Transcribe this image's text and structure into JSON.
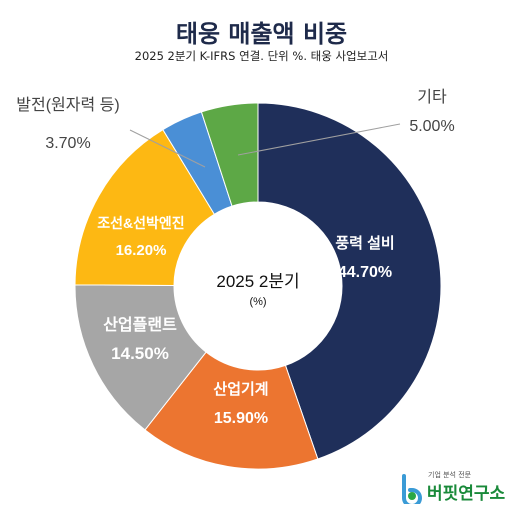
{
  "title": "태웅 매출액 비중",
  "subtitle": "2025 2분기 K-IFRS 연결. 단위 %. 태웅 사업보고서",
  "colors": {
    "navy": "#1f2f5a",
    "orange": "#ec7530",
    "gray": "#a6a6a6",
    "yellow": "#fdb813",
    "blue": "#4a8fd6",
    "green": "#5da846",
    "dark_text": "#444444"
  },
  "chart_data": {
    "type": "pie",
    "variant": "donut",
    "center_label": "2025 2분기",
    "center_sublabel": "(%)",
    "slices": [
      {
        "name": "풍력 설비",
        "value": 44.7,
        "label": "44.70%",
        "color": "#1f2f5a"
      },
      {
        "name": "산업기계",
        "value": 15.9,
        "label": "15.90%",
        "color": "#ec7530"
      },
      {
        "name": "산업플랜트",
        "value": 14.5,
        "label": "14.50%",
        "color": "#a6a6a6"
      },
      {
        "name": "조선&선박엔진",
        "value": 16.2,
        "label": "16.20%",
        "color": "#fdb813"
      },
      {
        "name": "발전(원자력 등)",
        "value": 3.7,
        "label": "3.70%",
        "color": "#4a8fd6"
      },
      {
        "name": "기타",
        "value": 5.0,
        "label": "5.00%",
        "color": "#5da846"
      }
    ]
  },
  "logo": {
    "tagline": "기업 분석 전문",
    "name": "버핏연구소",
    "icon": "logo-b-icon"
  }
}
